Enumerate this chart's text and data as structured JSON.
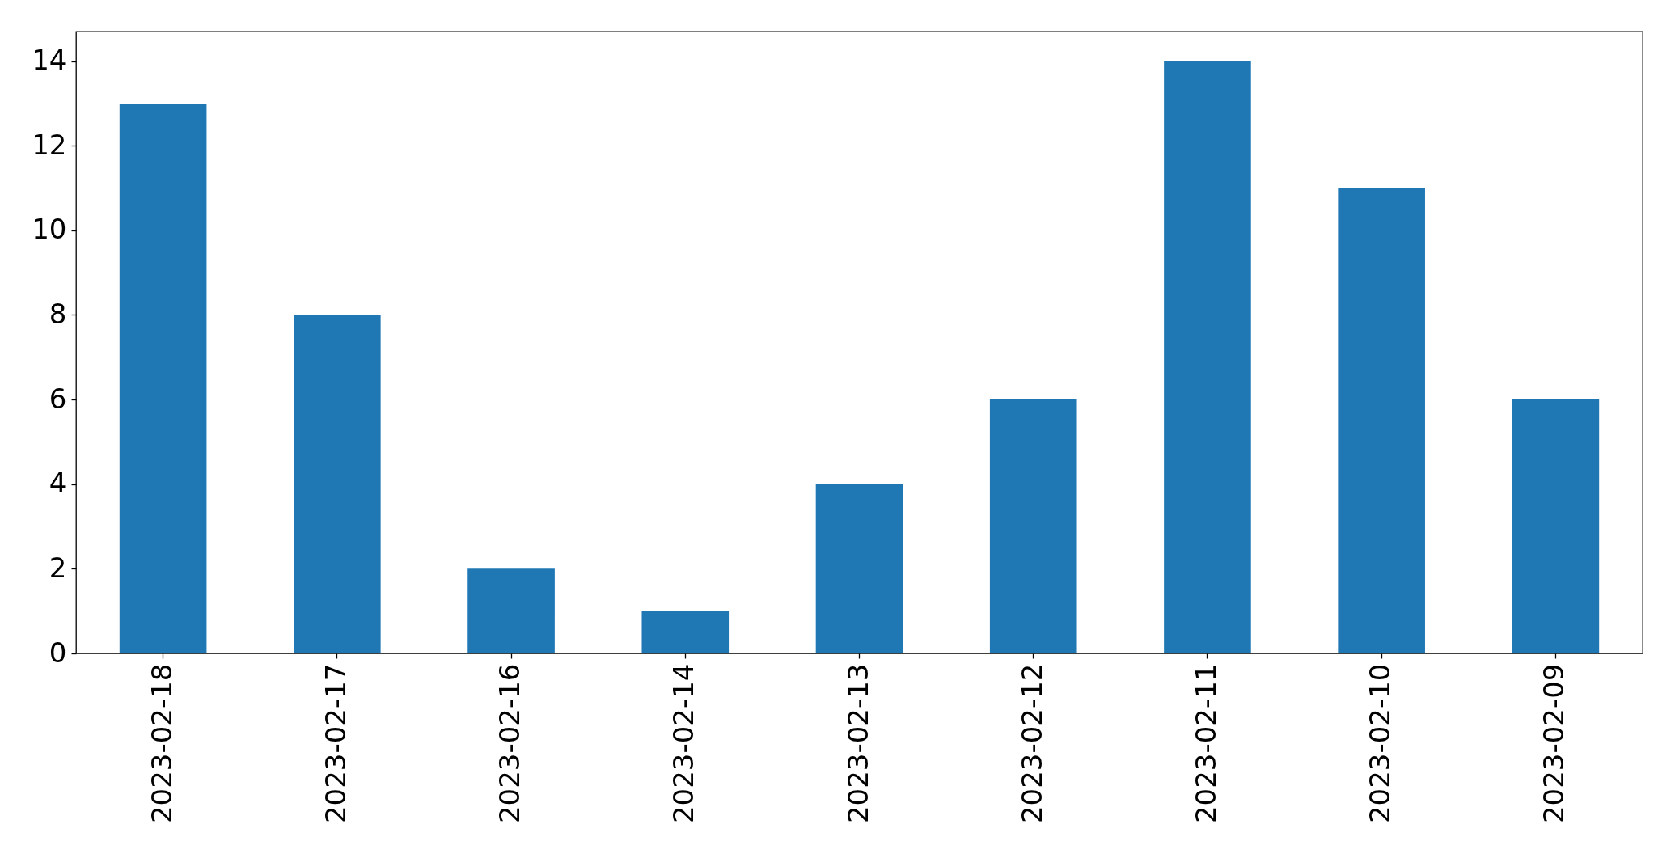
{
  "chart_data": {
    "type": "bar",
    "categories": [
      "2023-02-18",
      "2023-02-17",
      "2023-02-16",
      "2023-02-14",
      "2023-02-13",
      "2023-02-12",
      "2023-02-11",
      "2023-02-10",
      "2023-02-09"
    ],
    "values": [
      13,
      8,
      2,
      1,
      4,
      6,
      14,
      11,
      6
    ],
    "color": "#1f77b4",
    "ylim": [
      0,
      14.7
    ],
    "yticks": [
      0,
      2,
      4,
      6,
      8,
      10,
      12,
      14
    ]
  }
}
